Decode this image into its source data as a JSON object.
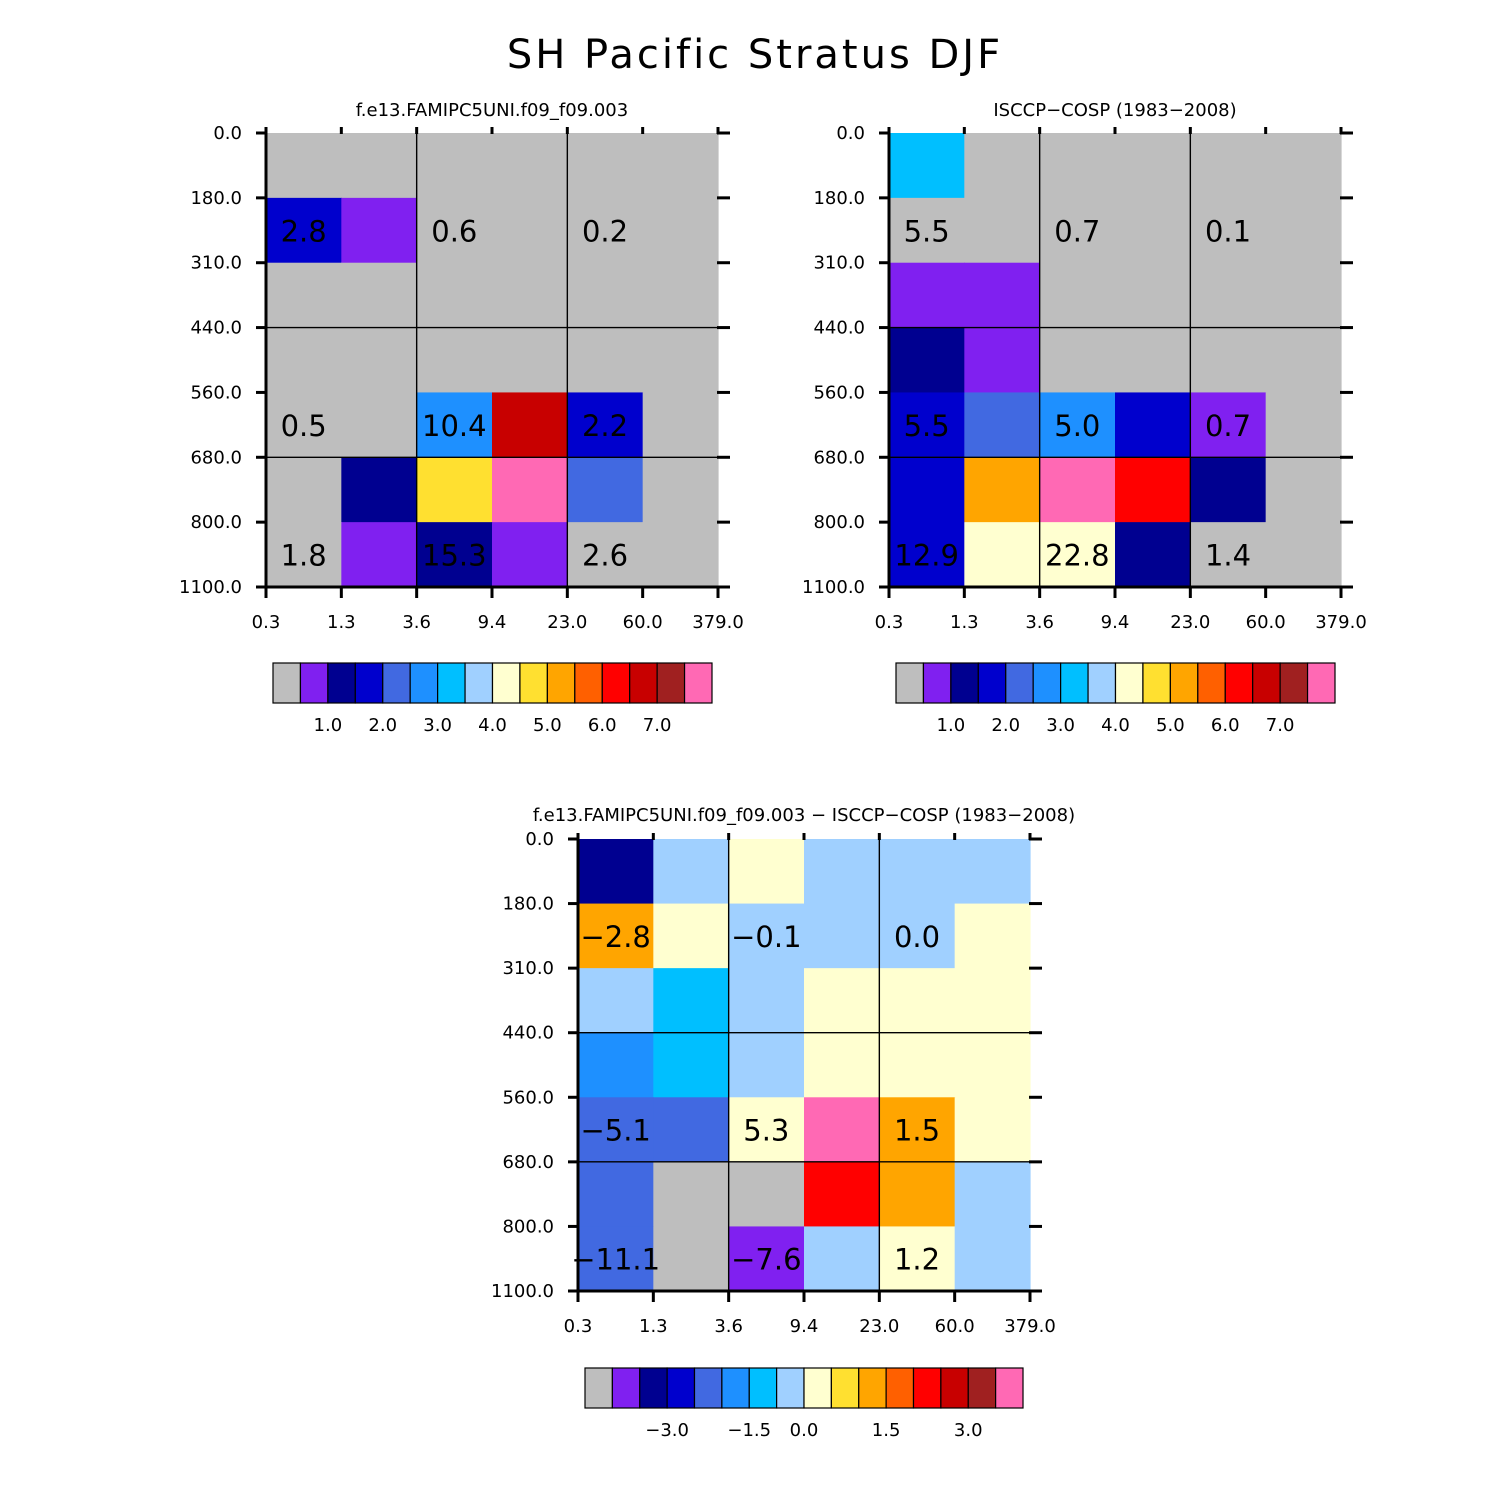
{
  "title": "SH Pacific Stratus DJF",
  "colors": {
    "palette": [
      "#bebebe",
      "#8020f0",
      "#000090",
      "#0000cd",
      "#4169e1",
      "#1e90ff",
      "#00bfff",
      "#a0d0ff",
      "#ffffd0",
      "#ffe030",
      "#ffa500",
      "#ff6000",
      "#ff0000",
      "#c80000",
      "#a02020",
      "#ff69b4"
    ]
  },
  "chart_data": [
    {
      "type": "heatmap",
      "title": "f.e13.FAMIPC5UNI.f09_f09.003",
      "x_ticks": [
        "0.3",
        "1.3",
        "3.6",
        "9.4",
        "23.0",
        "60.0",
        "379.0"
      ],
      "y_ticks": [
        "0.0",
        "180.0",
        "310.0",
        "440.0",
        "560.0",
        "680.0",
        "800.0",
        "1100.0"
      ],
      "cells": [
        [
          0,
          0,
          0,
          0,
          0,
          0
        ],
        [
          3,
          1,
          0,
          0,
          0,
          0
        ],
        [
          0,
          0,
          0,
          0,
          0,
          0
        ],
        [
          0,
          0,
          0,
          0,
          0,
          0
        ],
        [
          0,
          0,
          5,
          13,
          3,
          0
        ],
        [
          0,
          2,
          9,
          15,
          4,
          0
        ],
        [
          0,
          1,
          2,
          1,
          0,
          0
        ]
      ],
      "labels": [
        "2.8",
        "0.6",
        "0.2",
        "0.5",
        "10.4",
        "2.2",
        "1.8",
        "15.3",
        "2.6"
      ],
      "colorbar_ticks": [
        "1.0",
        "2.0",
        "3.0",
        "4.0",
        "5.0",
        "6.0",
        "7.0"
      ]
    },
    {
      "type": "heatmap",
      "title": "ISCCP-COSP (1983-2008)",
      "x_ticks": [
        "0.3",
        "1.3",
        "3.6",
        "9.4",
        "23.0",
        "60.0",
        "379.0"
      ],
      "y_ticks": [
        "0.0",
        "180.0",
        "310.0",
        "440.0",
        "560.0",
        "680.0",
        "800.0",
        "1100.0"
      ],
      "cells": [
        [
          6,
          0,
          0,
          0,
          0,
          0
        ],
        [
          0,
          0,
          0,
          0,
          0,
          0
        ],
        [
          1,
          1,
          0,
          0,
          0,
          0
        ],
        [
          2,
          1,
          0,
          0,
          0,
          0
        ],
        [
          3,
          4,
          5,
          3,
          1,
          0
        ],
        [
          3,
          10,
          15,
          12,
          2,
          0
        ],
        [
          3,
          8,
          8,
          2,
          0,
          0
        ]
      ],
      "labels": [
        "5.5",
        "0.7",
        "0.1",
        "5.5",
        "5.0",
        "0.7",
        "12.9",
        "22.8",
        "1.4"
      ],
      "colorbar_ticks": [
        "1.0",
        "2.0",
        "3.0",
        "4.0",
        "5.0",
        "6.0",
        "7.0"
      ]
    },
    {
      "type": "heatmap",
      "title": "f.e13.FAMIPC5UNI.f09_f09.003 - ISCCP-COSP (1983-2008)",
      "x_ticks": [
        "0.3",
        "1.3",
        "3.6",
        "9.4",
        "23.0",
        "60.0",
        "379.0"
      ],
      "y_ticks": [
        "0.0",
        "180.0",
        "310.0",
        "440.0",
        "560.0",
        "680.0",
        "800.0",
        "1100.0"
      ],
      "cells": [
        [
          2,
          7,
          8,
          7,
          7,
          7
        ],
        [
          10,
          8,
          7,
          7,
          7,
          8
        ],
        [
          7,
          6,
          7,
          8,
          8,
          8
        ],
        [
          5,
          6,
          7,
          8,
          8,
          8
        ],
        [
          4,
          4,
          8,
          15,
          10,
          8
        ],
        [
          4,
          0,
          0,
          12,
          10,
          7
        ],
        [
          4,
          0,
          1,
          7,
          8,
          7
        ]
      ],
      "labels": [
        "-2.8",
        "-0.1",
        "0.0",
        "-5.1",
        "5.3",
        "1.5",
        "-11.1",
        "-7.6",
        "1.2"
      ],
      "colorbar_ticks": [
        "-3.0",
        "-1.5",
        "0.0",
        "1.5",
        "3.0"
      ]
    }
  ]
}
